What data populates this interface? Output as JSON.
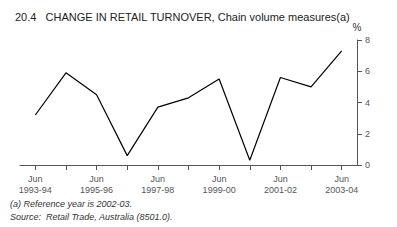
{
  "chart_data": {
    "type": "line",
    "title": "20.4   CHANGE IN RETAIL TURNOVER, Chain volume measures(a)",
    "categories": [
      "Jun\n1993-94",
      null,
      "Jun\n1995-96",
      null,
      "Jun\n1997-98",
      null,
      "Jun\n1999-00",
      null,
      "Jun\n2001-02",
      null,
      "Jun\n2003-04"
    ],
    "values": [
      3.2,
      5.9,
      4.5,
      0.6,
      3.7,
      4.3,
      5.5,
      0.3,
      5.6,
      5.0,
      7.3
    ],
    "color": "#000000",
    "ylabel": "%",
    "ylim": [
      0,
      8
    ],
    "yticks": [
      0,
      2,
      4,
      6,
      8
    ],
    "grid": false,
    "annotations": [
      "(a) Reference year is 2002-03.",
      "Source:  Retail Trade, Australia (8501.0)."
    ]
  }
}
